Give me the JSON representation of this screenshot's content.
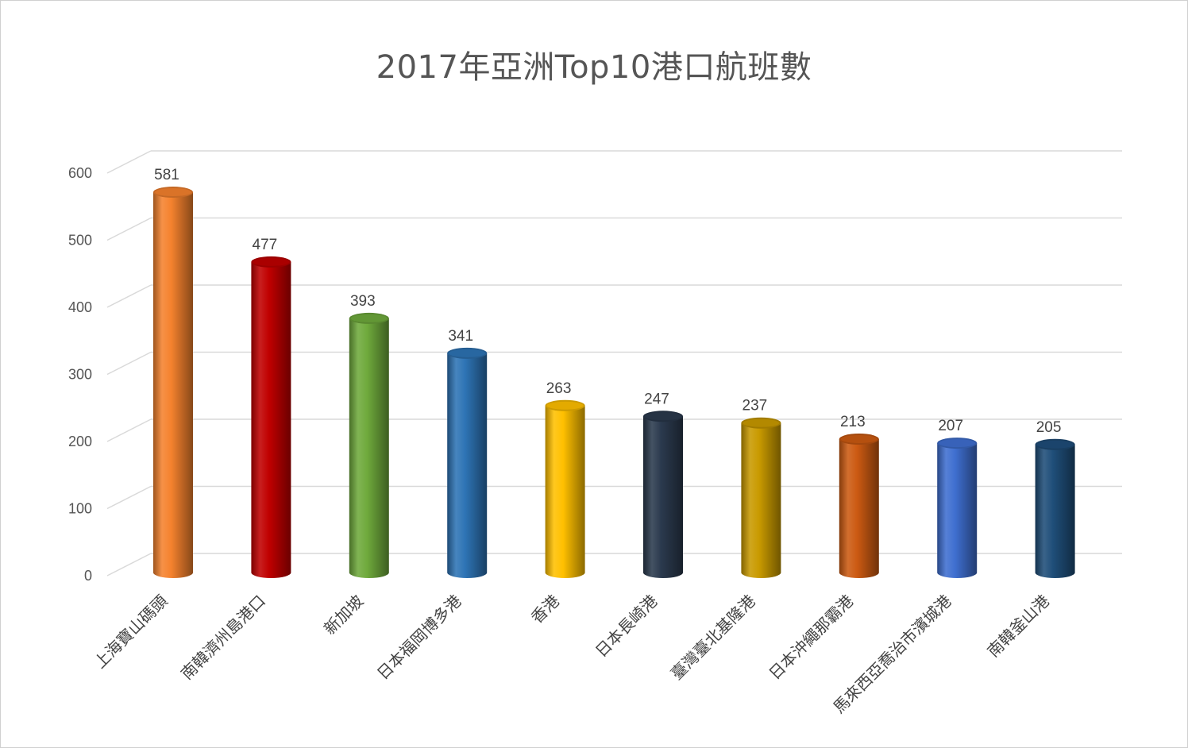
{
  "chart_data": {
    "type": "bar",
    "title": "2017年亞洲Top10港口航班數",
    "categories": [
      "上海寶山碼頭",
      "南韓濟州島港口",
      "新加坡",
      "日本福岡博多港",
      "香港",
      "日本長崎港",
      "臺灣臺北基隆港",
      "日本沖繩那霸港",
      "馬來西亞喬治市濱城港",
      "南韓釜山港"
    ],
    "values": [
      581,
      477,
      393,
      341,
      263,
      247,
      237,
      213,
      207,
      205
    ],
    "colors": [
      "#F5822E",
      "#C00000",
      "#6FAA3C",
      "#2E74B5",
      "#FFC000",
      "#2B3A4E",
      "#C99A00",
      "#CC5A12",
      "#3F6FD0",
      "#1F4E79"
    ],
    "ylim": [
      0,
      600
    ],
    "yticks": [
      0,
      100,
      200,
      300,
      400,
      500,
      600
    ],
    "xlabel": "",
    "ylabel": "",
    "grid": true,
    "legend": "none",
    "style": "3d-cylinder"
  }
}
